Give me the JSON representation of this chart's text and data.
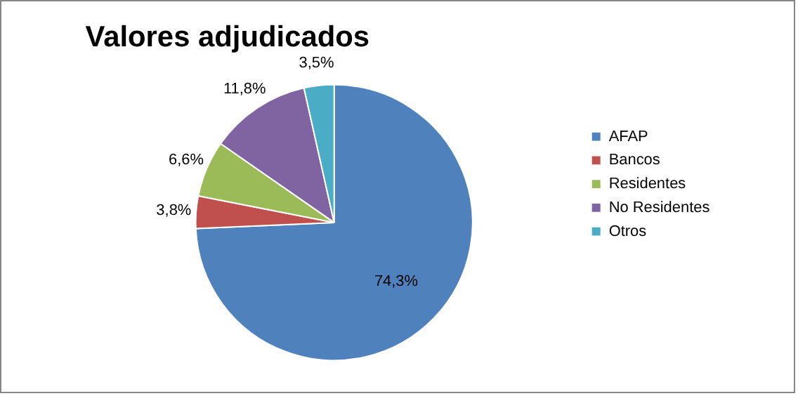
{
  "chart_data": {
    "type": "pie",
    "title": "Valores adjudicados",
    "categories": [
      "AFAP",
      "Bancos",
      "Residentes",
      "No Residentes",
      "Otros"
    ],
    "values": [
      74.3,
      3.8,
      6.6,
      11.8,
      3.5
    ],
    "value_labels": [
      "74,3%",
      "3,8%",
      "6,6%",
      "11,8%",
      "3,5%"
    ],
    "colors": [
      "#4f81bd",
      "#c0504d",
      "#9bbb59",
      "#8064a2",
      "#4bacc6"
    ],
    "legend": "right"
  }
}
